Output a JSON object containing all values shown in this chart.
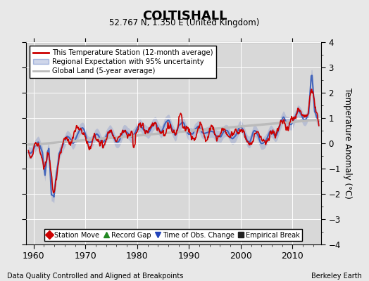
{
  "title": "COLTISHALL",
  "subtitle": "52.767 N, 1.350 E (United Kingdom)",
  "ylabel": "Temperature Anomaly (°C)",
  "footer_left": "Data Quality Controlled and Aligned at Breakpoints",
  "footer_right": "Berkeley Earth",
  "xlim": [
    1958.5,
    2015.5
  ],
  "ylim": [
    -4,
    4
  ],
  "yticks": [
    -4,
    -3,
    -2,
    -1,
    0,
    1,
    2,
    3,
    4
  ],
  "xticks": [
    1960,
    1970,
    1980,
    1990,
    2000,
    2010
  ],
  "bg_color": "#e8e8e8",
  "plot_bg_color": "#d8d8d8",
  "grid_color": "#ffffff",
  "station_color": "#cc0000",
  "regional_color": "#4466bb",
  "regional_fill_color": "#8899cc",
  "regional_fill_alpha": 0.4,
  "global_color": "#bbbbbb",
  "legend_labels": [
    "This Temperature Station (12-month average)",
    "Regional Expectation with 95% uncertainty",
    "Global Land (5-year average)"
  ],
  "bottom_legend": [
    {
      "marker": "D",
      "color": "#cc0000",
      "label": "Station Move"
    },
    {
      "marker": "^",
      "color": "#228822",
      "label": "Record Gap"
    },
    {
      "marker": "v",
      "color": "#2244bb",
      "label": "Time of Obs. Change"
    },
    {
      "marker": "s",
      "color": "#222222",
      "label": "Empirical Break"
    }
  ]
}
